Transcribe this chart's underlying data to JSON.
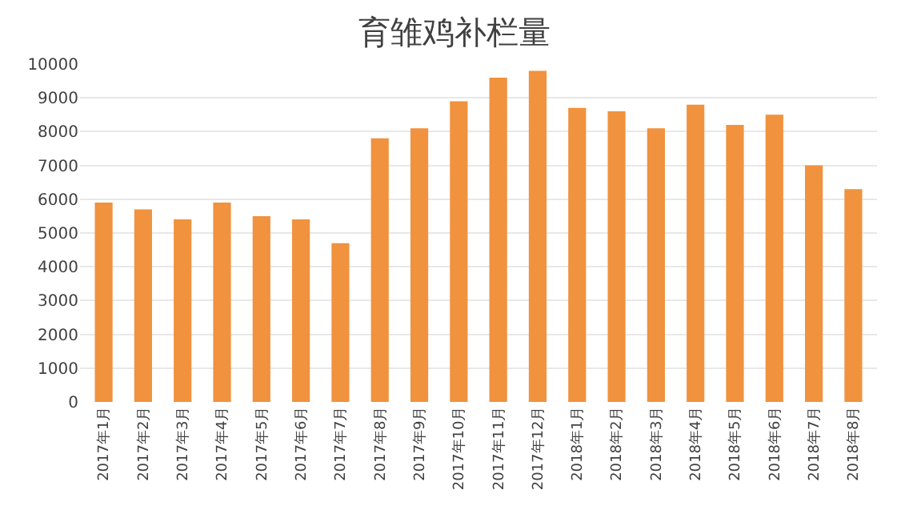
{
  "chart_data": {
    "type": "bar",
    "title": "育雏鸡补栏量",
    "categories": [
      "2017年1月",
      "2017年2月",
      "2017年3月",
      "2017年4月",
      "2017年5月",
      "2017年6月",
      "2017年7月",
      "2017年8月",
      "2017年9月",
      "2017年10月",
      "2017年11月",
      "2017年12月",
      "2018年1月",
      "2018年2月",
      "2018年3月",
      "2018年4月",
      "2018年5月",
      "2018年6月",
      "2018年7月",
      "2018年8月"
    ],
    "values": [
      5900,
      5700,
      5400,
      5900,
      5500,
      5400,
      4700,
      7800,
      8100,
      8900,
      9600,
      9800,
      8700,
      8600,
      8100,
      8800,
      8200,
      8500,
      7000,
      6300
    ],
    "color": "#f0923e",
    "ylim": [
      0,
      10000
    ],
    "yticks": [
      0,
      1000,
      2000,
      3000,
      4000,
      5000,
      6000,
      7000,
      8000,
      9000,
      10000
    ],
    "grid": "y"
  }
}
